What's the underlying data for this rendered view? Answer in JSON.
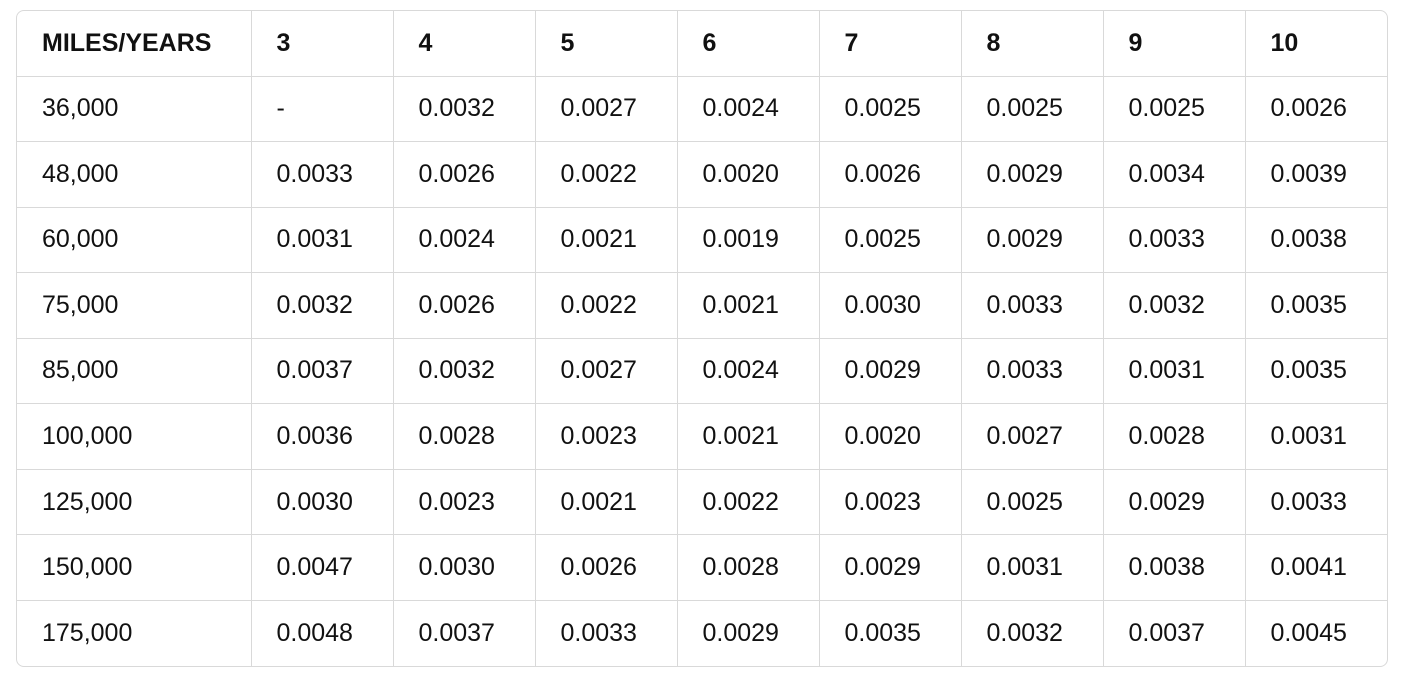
{
  "table": {
    "header": [
      "MILES/YEARS",
      "3",
      "4",
      "5",
      "6",
      "7",
      "8",
      "9",
      "10"
    ],
    "rows": [
      [
        "36,000",
        "-",
        "0.0032",
        "0.0027",
        "0.0024",
        "0.0025",
        "0.0025",
        "0.0025",
        "0.0026"
      ],
      [
        "48,000",
        "0.0033",
        "0.0026",
        "0.0022",
        "0.0020",
        "0.0026",
        "0.0029",
        "0.0034",
        "0.0039"
      ],
      [
        "60,000",
        "0.0031",
        "0.0024",
        "0.0021",
        "0.0019",
        "0.0025",
        "0.0029",
        "0.0033",
        "0.0038"
      ],
      [
        "75,000",
        "0.0032",
        "0.0026",
        "0.0022",
        "0.0021",
        "0.0030",
        "0.0033",
        "0.0032",
        "0.0035"
      ],
      [
        "85,000",
        "0.0037",
        "0.0032",
        "0.0027",
        "0.0024",
        "0.0029",
        "0.0033",
        "0.0031",
        "0.0035"
      ],
      [
        "100,000",
        "0.0036",
        "0.0028",
        "0.0023",
        "0.0021",
        "0.0020",
        "0.0027",
        "0.0028",
        "0.0031"
      ],
      [
        "125,000",
        "0.0030",
        "0.0023",
        "0.0021",
        "0.0022",
        "0.0023",
        "0.0025",
        "0.0029",
        "0.0033"
      ],
      [
        "150,000",
        "0.0047",
        "0.0030",
        "0.0026",
        "0.0028",
        "0.0029",
        "0.0031",
        "0.0038",
        "0.0041"
      ],
      [
        "175,000",
        "0.0048",
        "0.0037",
        "0.0033",
        "0.0029",
        "0.0035",
        "0.0032",
        "0.0037",
        "0.0045"
      ]
    ]
  }
}
